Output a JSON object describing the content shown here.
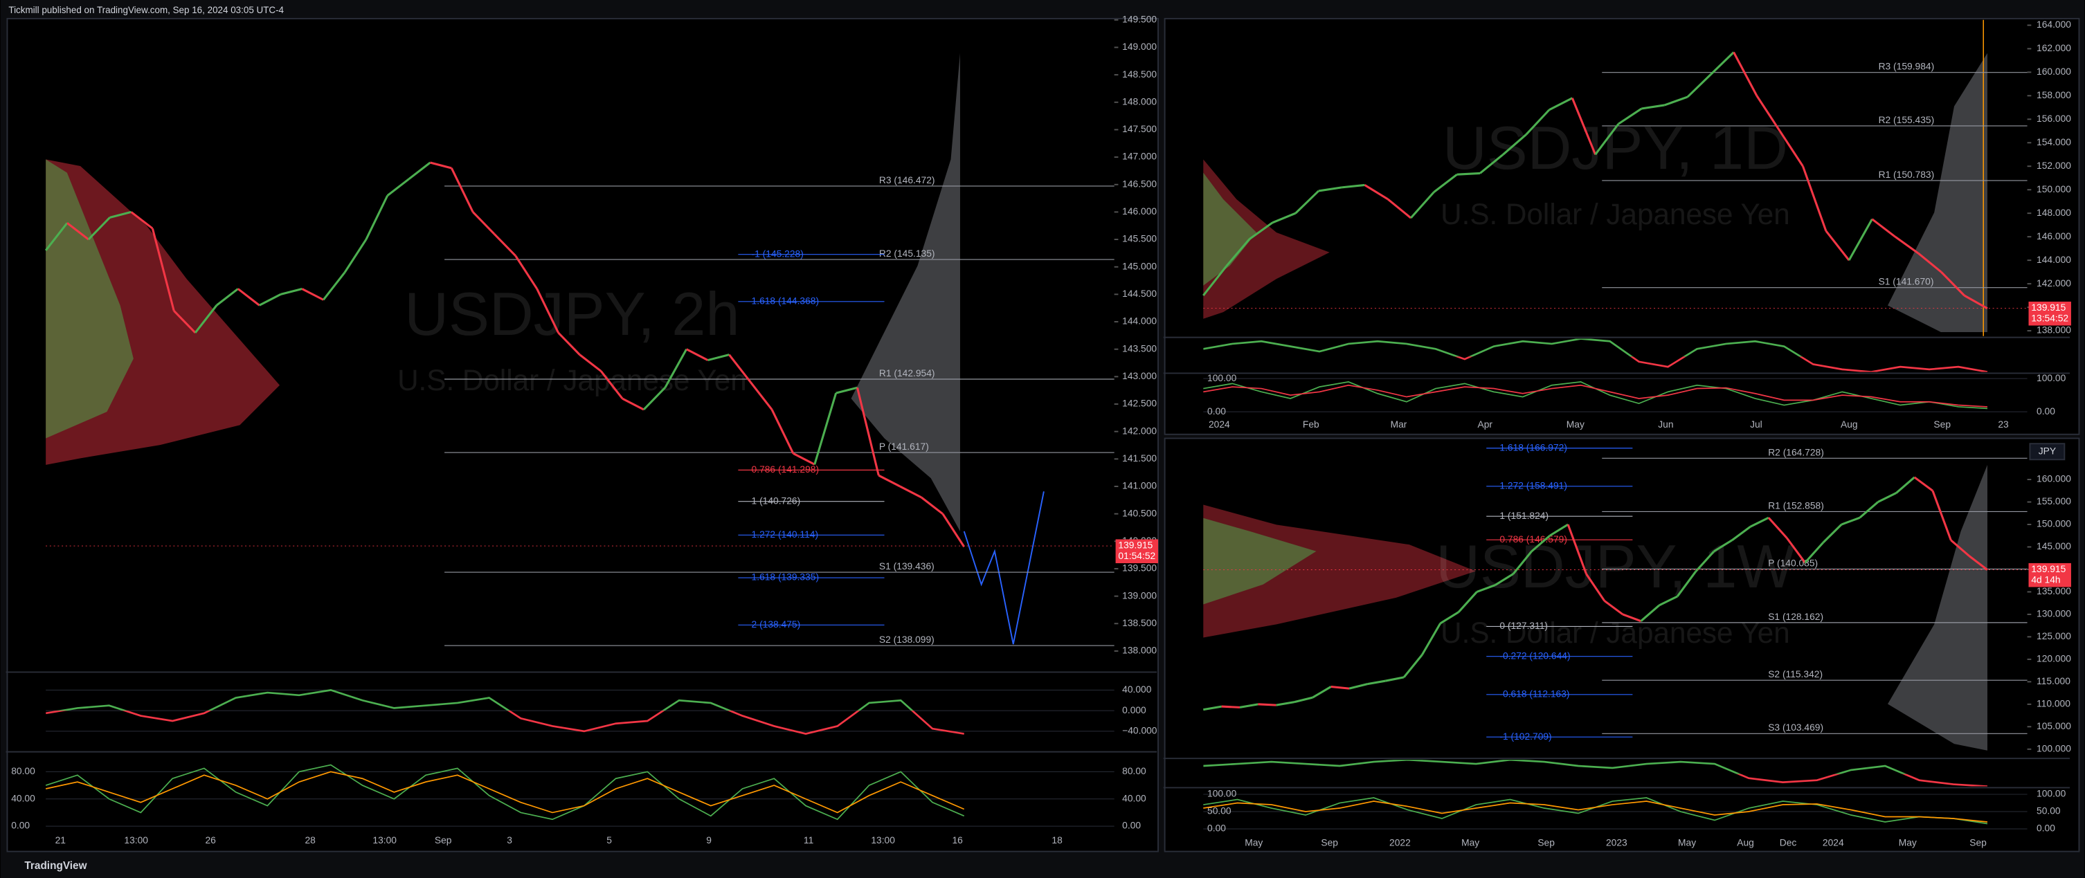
{
  "header": {
    "text": "Tickmill published on TradingView.com, Sep 16, 2024 03:05 UTC-4"
  },
  "footer": {
    "brand": "TradingView"
  },
  "chart_data": [
    {
      "type": "line",
      "title": "USDJPY, 2h",
      "subtitle": "U.S. Dollar / Japanese Yen",
      "up_color": "#4caf50",
      "down_color": "#f23645",
      "series": [
        {
          "values": [
            145.3,
            145.8,
            145.5,
            145.9,
            146.0,
            145.7,
            144.2,
            143.8,
            144.3,
            144.6,
            144.3,
            144.5,
            144.6,
            144.4,
            144.9,
            145.5,
            146.3,
            146.6,
            146.9,
            146.8,
            146.0,
            145.6,
            145.2,
            144.6,
            143.8,
            143.4,
            143.1,
            142.6,
            142.4,
            142.8,
            143.5,
            143.3,
            143.4,
            142.9,
            142.4,
            141.6,
            141.4,
            142.7,
            142.8,
            141.2,
            141.0,
            140.8,
            140.5,
            139.9
          ]
        }
      ],
      "ylim": [
        137.64,
        149.5
      ],
      "yticks": [
        {
          "value": 138,
          "label": "138.000"
        },
        {
          "value": 138.5,
          "label": "138.500"
        },
        {
          "value": 139,
          "label": "139.000"
        },
        {
          "value": 139.5,
          "label": "139.500"
        },
        {
          "value": 140,
          "label": "140.000"
        },
        {
          "value": 140.5,
          "label": "140.500"
        },
        {
          "value": 141,
          "label": "141.000"
        },
        {
          "value": 141.5,
          "label": "141.500"
        },
        {
          "value": 142,
          "label": "142.000"
        },
        {
          "value": 142.5,
          "label": "142.500"
        },
        {
          "value": 143,
          "label": "143.000"
        },
        {
          "value": 143.5,
          "label": "143.500"
        },
        {
          "value": 144,
          "label": "144.000"
        },
        {
          "value": 144.5,
          "label": "144.500"
        },
        {
          "value": 145,
          "label": "145.000"
        },
        {
          "value": 145.5,
          "label": "145.500"
        },
        {
          "value": 146,
          "label": "146.000"
        },
        {
          "value": 146.5,
          "label": "146.500"
        },
        {
          "value": 147,
          "label": "147.000"
        },
        {
          "value": 147.5,
          "label": "147.500"
        },
        {
          "value": 148,
          "label": "148.000"
        },
        {
          "value": 148.5,
          "label": "148.500"
        },
        {
          "value": 149,
          "label": "149.000"
        },
        {
          "value": 149.5,
          "label": "149.500"
        }
      ],
      "x_labels": [
        "21",
        "13:00",
        "26",
        "28",
        "13:00",
        "Sep",
        "3",
        "5",
        "9",
        "11",
        "13:00",
        "16",
        "18"
      ],
      "price_label": {
        "value": 139.915,
        "label": "139.915"
      },
      "countdown": "01:54:52",
      "pivots": [
        {
          "label": "R3 (146.472)",
          "value": 146.472
        },
        {
          "label": "R2 (145.135)",
          "value": 145.135
        },
        {
          "label": "R1 (142.954)",
          "value": 142.954
        },
        {
          "label": "P (141.617)",
          "value": 141.617
        },
        {
          "label": "S1 (139.436)",
          "value": 139.436
        },
        {
          "label": "S2 (138.099)",
          "value": 138.099
        }
      ],
      "fibs": [
        {
          "label": "-1 (145.228)",
          "value": 145.228,
          "color": "#2962ff"
        },
        {
          "label": "1.618 (144.368)",
          "value": 144.368,
          "color": "#2962ff"
        },
        {
          "label": "0.786 (141.298)",
          "value": 141.298,
          "color": "#f23645"
        },
        {
          "label": "1 (140.726)",
          "value": 140.726,
          "color": "#b2b5be"
        },
        {
          "label": "1.272 (140.114)",
          "value": 140.114,
          "color": "#2962ff"
        },
        {
          "label": "1.618 (139.335)",
          "value": 139.335,
          "color": "#2962ff"
        },
        {
          "label": "2 (138.475)",
          "value": 138.475,
          "color": "#2962ff"
        }
      ],
      "indicators": [
        {
          "ylim": [
            -77.4,
            72.3
          ],
          "yticks": [
            {
              "value": 40,
              "label": "40.000"
            },
            {
              "value": 0,
              "label": "0.000"
            },
            {
              "value": -40,
              "label": "−40.000"
            }
          ],
          "up_color": "#4caf50",
          "down_color": "#f23645",
          "series": [
            {
              "values": [
                -5,
                5,
                10,
                -10,
                -20,
                -5,
                25,
                35,
                30,
                40,
                20,
                5,
                10,
                15,
                25,
                -15,
                -30,
                -40,
                -25,
                -20,
                20,
                15,
                -10,
                -30,
                -45,
                -30,
                15,
                20,
                -35,
                -45
              ]
            }
          ]
        },
        {
          "ylim": [
            -5.9,
            107.3
          ],
          "yticks": [
            {
              "value": 80,
              "label": "80.00"
            },
            {
              "value": 40,
              "label": "40.00"
            },
            {
              "value": 0,
              "label": "0.00"
            }
          ],
          "series": [
            {
              "color": "#4caf50",
              "values": [
                60,
                75,
                40,
                20,
                70,
                85,
                50,
                30,
                80,
                90,
                60,
                40,
                75,
                85,
                45,
                20,
                10,
                30,
                70,
                80,
                40,
                15,
                55,
                70,
                30,
                10,
                60,
                80,
                35,
                15
              ]
            },
            {
              "color": "#ff9800",
              "values": [
                55,
                65,
                50,
                35,
                55,
                75,
                60,
                40,
                65,
                80,
                70,
                50,
                65,
                75,
                55,
                35,
                20,
                30,
                55,
                70,
                50,
                30,
                45,
                60,
                40,
                20,
                45,
                65,
                45,
                25
              ]
            }
          ]
        }
      ]
    },
    {
      "type": "line",
      "title": "USDJPY, 1D",
      "subtitle": "U.S. Dollar / Japanese Yen",
      "up_color": "#4caf50",
      "down_color": "#f23645",
      "series": [
        {
          "values": [
            141.0,
            143.5,
            145.8,
            147.2,
            148.0,
            149.9,
            150.2,
            150.4,
            149.2,
            147.6,
            149.8,
            151.3,
            151.4,
            153.0,
            154.7,
            156.8,
            157.8,
            153.0,
            155.6,
            156.9,
            157.2,
            157.9,
            159.8,
            161.7,
            158.0,
            155.0,
            152.0,
            146.5,
            144.0,
            147.5,
            146.0,
            144.6,
            143.0,
            141.0,
            139.9
          ]
        }
      ],
      "ylim": [
        137.55,
        164.45
      ],
      "yticks": [
        {
          "value": 138,
          "label": "138.000"
        },
        {
          "value": 140,
          "label": "140.000"
        },
        {
          "value": 142,
          "label": "142.000"
        },
        {
          "value": 144,
          "label": "144.000"
        },
        {
          "value": 146,
          "label": "146.000"
        },
        {
          "value": 148,
          "label": "148.000"
        },
        {
          "value": 150,
          "label": "150.000"
        },
        {
          "value": 152,
          "label": "152.000"
        },
        {
          "value": 154,
          "label": "154.000"
        },
        {
          "value": 156,
          "label": "156.000"
        },
        {
          "value": 158,
          "label": "158.000"
        },
        {
          "value": 160,
          "label": "160.000"
        },
        {
          "value": 162,
          "label": "162.000"
        },
        {
          "value": 164,
          "label": "164.000"
        }
      ],
      "x_labels": [
        "2024",
        "Feb",
        "Mar",
        "Apr",
        "May",
        "Jun",
        "Jul",
        "Aug",
        "Sep",
        "23"
      ],
      "price_label": {
        "value": 139.915,
        "label": "139.915"
      },
      "countdown": "13:54:52",
      "pivots": [
        {
          "label": "R3 (159.984)",
          "value": 159.984
        },
        {
          "label": "R2 (155.435)",
          "value": 155.435
        },
        {
          "label": "R1 (150.783)",
          "value": 150.783
        },
        {
          "label": "S1 (141.670)",
          "value": 141.67
        }
      ],
      "fibs": [],
      "indicators": [
        {
          "up_color": "#4caf50",
          "down_color": "#f23645",
          "series": [
            {
              "values": [
                3,
                5,
                6,
                4,
                2,
                5,
                6,
                5,
                3,
                -1,
                4,
                6,
                5,
                7,
                6,
                -2,
                -4,
                3,
                5,
                6,
                4,
                -3,
                -5,
                -6,
                -4,
                -5,
                -4,
                -6
              ]
            }
          ]
        },
        {
          "ylim": [
            -8,
            112
          ],
          "yticks": [
            {
              "value": 100,
              "label": "100.00"
            },
            {
              "value": 0,
              "label": "0.00"
            }
          ],
          "series": [
            {
              "color": "#4caf50",
              "values": [
                70,
                85,
                60,
                40,
                75,
                90,
                55,
                30,
                70,
                85,
                60,
                45,
                80,
                90,
                50,
                25,
                60,
                80,
                70,
                40,
                20,
                35,
                60,
                40,
                20,
                30,
                15,
                10
              ]
            },
            {
              "color": "#f23645",
              "values": [
                60,
                75,
                70,
                50,
                60,
                80,
                65,
                45,
                60,
                75,
                70,
                55,
                70,
                80,
                60,
                40,
                50,
                70,
                72,
                55,
                35,
                35,
                50,
                45,
                30,
                30,
                20,
                15
              ]
            }
          ]
        }
      ]
    },
    {
      "type": "line",
      "title": "USDJPY, 1W",
      "subtitle": "U.S. Dollar / Japanese Yen",
      "up_color": "#4caf50",
      "down_color": "#f23645",
      "currency": "JPY",
      "series": [
        {
          "values": [
            108.8,
            109.5,
            109.3,
            110.0,
            109.8,
            110.5,
            111.5,
            113.9,
            113.5,
            114.5,
            115.2,
            116.0,
            121.0,
            128.0,
            130.5,
            135.0,
            136.5,
            139.0,
            144.0,
            147.5,
            150.0,
            139.0,
            133.0,
            130.0,
            128.5,
            132.0,
            134.0,
            139.5,
            144.0,
            146.5,
            149.5,
            151.5,
            147.0,
            141.5,
            146.0,
            150.0,
            151.5,
            155.0,
            157.0,
            160.5,
            157.5,
            146.5,
            143.0,
            139.9
          ]
        }
      ],
      "ylim": [
        98.23,
        168.57
      ],
      "yticks": [
        {
          "value": 100,
          "label": "100.000"
        },
        {
          "value": 105,
          "label": "105.000"
        },
        {
          "value": 110,
          "label": "110.000"
        },
        {
          "value": 115,
          "label": "115.000"
        },
        {
          "value": 120,
          "label": "120.000"
        },
        {
          "value": 125,
          "label": "125.000"
        },
        {
          "value": 130,
          "label": "130.000"
        },
        {
          "value": 135,
          "label": "135.000"
        },
        {
          "value": 140,
          "label": "140.000"
        },
        {
          "value": 145,
          "label": "145.000"
        },
        {
          "value": 150,
          "label": "150.000"
        },
        {
          "value": 155,
          "label": "155.000"
        },
        {
          "value": 160,
          "label": "160.000"
        }
      ],
      "x_labels": [
        "May",
        "Sep",
        "2022",
        "May",
        "Sep",
        "2023",
        "May",
        "Aug",
        "Dec",
        "2024",
        "May",
        "Sep"
      ],
      "price_label": {
        "value": 139.915,
        "label": "139.915"
      },
      "countdown": "4d 14h",
      "pivots": [
        {
          "label": "R2 (164.728)",
          "value": 164.728
        },
        {
          "label": "R1 (152.858)",
          "value": 152.858
        },
        {
          "label": "P (140.085)",
          "value": 140.085
        },
        {
          "label": "S1 (128.162)",
          "value": 128.162
        },
        {
          "label": "S2 (115.342)",
          "value": 115.342
        },
        {
          "label": "S3 (103.469)",
          "value": 103.469
        }
      ],
      "fibs": [
        {
          "label": "1.618 (166.972)",
          "value": 166.972,
          "color": "#2962ff"
        },
        {
          "label": "1.272 (158.491)",
          "value": 158.491,
          "color": "#2962ff"
        },
        {
          "label": "1 (151.824)",
          "value": 151.824,
          "color": "#b2b5be"
        },
        {
          "label": "0.786 (146.579)",
          "value": 146.579,
          "color": "#f23645"
        },
        {
          "label": "0 (127.311)",
          "value": 127.311,
          "color": "#b2b5be"
        },
        {
          "label": "-0.272 (120.644)",
          "value": 120.644,
          "color": "#2962ff"
        },
        {
          "label": "-0.618 (112.163)",
          "value": 112.163,
          "color": "#2962ff"
        },
        {
          "label": "-1 (102.709)",
          "value": 102.709,
          "color": "#2962ff"
        }
      ],
      "indicators": [
        {
          "up_color": "#4caf50",
          "down_color": "#f23645",
          "series": [
            {
              "values": [
                4,
                5,
                6,
                5,
                4,
                6,
                7,
                6,
                5,
                7,
                6,
                4,
                3,
                5,
                6,
                5,
                -2,
                -4,
                -3,
                2,
                4,
                -3,
                -5,
                -6
              ]
            }
          ]
        },
        {
          "ylim": [
            -11.5,
            115.4
          ],
          "yticks": [
            {
              "value": 100,
              "label": "100.00"
            },
            {
              "value": 50,
              "label": "50.00"
            },
            {
              "value": 0,
              "label": "0.00"
            }
          ],
          "series": [
            {
              "color": "#4caf50",
              "values": [
                70,
                85,
                60,
                40,
                75,
                90,
                55,
                30,
                70,
                85,
                60,
                45,
                80,
                90,
                50,
                25,
                60,
                80,
                70,
                40,
                20,
                35,
                30,
                15
              ]
            },
            {
              "color": "#ff9800",
              "values": [
                60,
                75,
                70,
                50,
                60,
                80,
                65,
                45,
                60,
                75,
                70,
                55,
                70,
                80,
                60,
                40,
                50,
                70,
                72,
                55,
                35,
                35,
                30,
                20
              ]
            }
          ]
        }
      ]
    }
  ]
}
